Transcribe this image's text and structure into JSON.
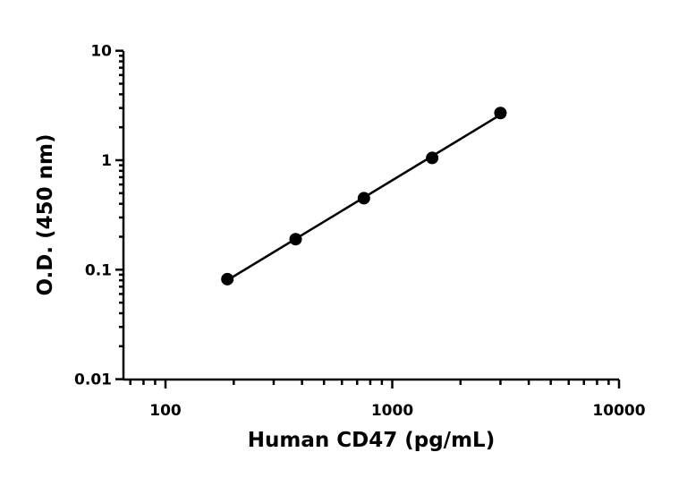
{
  "chart_data": {
    "type": "scatter",
    "title": "",
    "xlabel": "Human CD47 (pg/mL)",
    "ylabel": "O.D. (450 nm)",
    "x_scale": "log",
    "y_scale": "log",
    "xlim": [
      70,
      10000
    ],
    "ylim": [
      0.01,
      10
    ],
    "x_ticks": [
      "100",
      "1000",
      "10000"
    ],
    "y_ticks": [
      "0.01",
      "0.1",
      "1",
      "10"
    ],
    "grid": false,
    "legend": "none",
    "series": [
      {
        "x": [
          187.5,
          375,
          750,
          1500,
          3000
        ],
        "y": [
          0.082,
          0.19,
          0.45,
          1.05,
          2.7
        ],
        "color": "#000000",
        "fit_line": true
      }
    ]
  }
}
